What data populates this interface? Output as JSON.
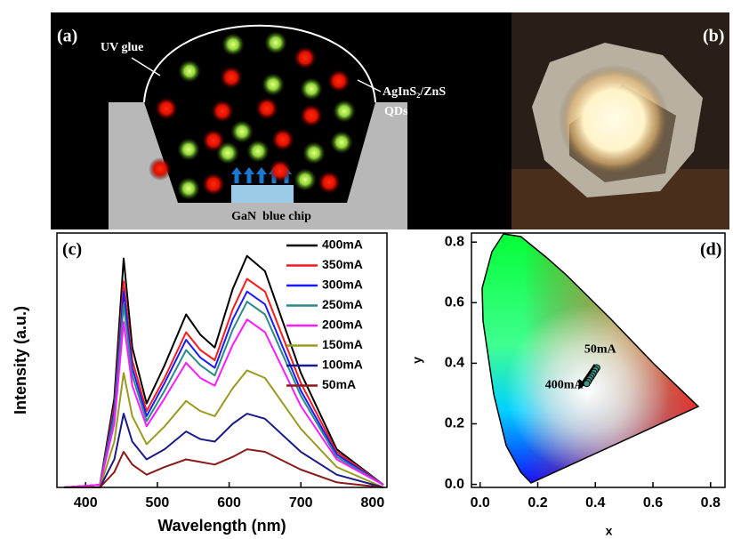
{
  "diagram": {
    "label": "(a)",
    "uv_glue": "UV glue",
    "qd_name": "AgInS₂/ZnS",
    "qd_suffix": "QDs",
    "chip": "GaN  blue chip"
  },
  "photo": {
    "label": "(b)"
  },
  "chart_data": [
    {
      "type": "line",
      "panel_label": "(c)",
      "xlabel": "Wavelength (nm)",
      "ylabel": "Intensity (a.u.)",
      "x": [
        370,
        420,
        440,
        453,
        465,
        485,
        510,
        540,
        560,
        580,
        605,
        625,
        650,
        700,
        750,
        815
      ],
      "xlim": [
        360,
        820
      ],
      "xticks": [
        400,
        500,
        600,
        700,
        800
      ],
      "ylim": [
        0,
        1
      ],
      "legend": "upper right",
      "series": [
        {
          "name": "400mA",
          "color": "#000000",
          "values": [
            0,
            0.01,
            0.35,
            0.9,
            0.55,
            0.33,
            0.48,
            0.68,
            0.6,
            0.55,
            0.78,
            0.91,
            0.85,
            0.45,
            0.15,
            0.01
          ]
        },
        {
          "name": "350mA",
          "color": "#ff1a1a",
          "values": [
            0,
            0.01,
            0.32,
            0.81,
            0.5,
            0.3,
            0.43,
            0.61,
            0.54,
            0.5,
            0.7,
            0.82,
            0.77,
            0.41,
            0.14,
            0.01
          ]
        },
        {
          "name": "300mA",
          "color": "#1a1aff",
          "values": [
            0,
            0.01,
            0.3,
            0.77,
            0.47,
            0.28,
            0.41,
            0.58,
            0.51,
            0.47,
            0.66,
            0.77,
            0.72,
            0.38,
            0.13,
            0.01
          ]
        },
        {
          "name": "250mA",
          "color": "#2a8a8a",
          "values": [
            0,
            0.01,
            0.28,
            0.72,
            0.44,
            0.26,
            0.38,
            0.54,
            0.48,
            0.44,
            0.62,
            0.73,
            0.68,
            0.36,
            0.12,
            0.01
          ]
        },
        {
          "name": "200mA",
          "color": "#ff1aff",
          "values": [
            0,
            0.01,
            0.25,
            0.65,
            0.4,
            0.24,
            0.35,
            0.49,
            0.43,
            0.4,
            0.56,
            0.66,
            0.61,
            0.32,
            0.11,
            0.01
          ]
        },
        {
          "name": "150mA",
          "color": "#9a9a20",
          "values": [
            0,
            0,
            0.18,
            0.45,
            0.28,
            0.17,
            0.24,
            0.34,
            0.3,
            0.28,
            0.39,
            0.46,
            0.43,
            0.23,
            0.08,
            0
          ]
        },
        {
          "name": "100mA",
          "color": "#1a1a8a",
          "values": [
            0,
            0,
            0.11,
            0.29,
            0.18,
            0.11,
            0.15,
            0.22,
            0.19,
            0.18,
            0.25,
            0.29,
            0.27,
            0.14,
            0.05,
            0
          ]
        },
        {
          "name": "50mA",
          "color": "#8b1a1a",
          "values": [
            0,
            0,
            0.06,
            0.14,
            0.09,
            0.05,
            0.08,
            0.11,
            0.1,
            0.09,
            0.12,
            0.15,
            0.14,
            0.07,
            0.02,
            0
          ]
        }
      ]
    },
    {
      "type": "scatter",
      "panel_label": "(d)",
      "xlabel": "x",
      "ylabel": "y",
      "x": [
        0.405,
        0.4,
        0.395,
        0.39,
        0.385,
        0.38,
        0.375,
        0.37
      ],
      "values": [
        0.385,
        0.378,
        0.37,
        0.362,
        0.355,
        0.348,
        0.34,
        0.333
      ],
      "color": "#3a9a8a",
      "xlim": [
        -0.03,
        0.85
      ],
      "ylim": [
        -0.01,
        0.83
      ],
      "xticks": [
        {
          "value": 0,
          "label": "0.0"
        },
        0.2,
        0.4,
        0.6,
        0.8
      ],
      "yticks": [
        {
          "value": 0,
          "label": "0.0"
        },
        0.2,
        0.4,
        0.6,
        0.8
      ],
      "annotations": [
        "50mA",
        "400mA"
      ]
    }
  ]
}
